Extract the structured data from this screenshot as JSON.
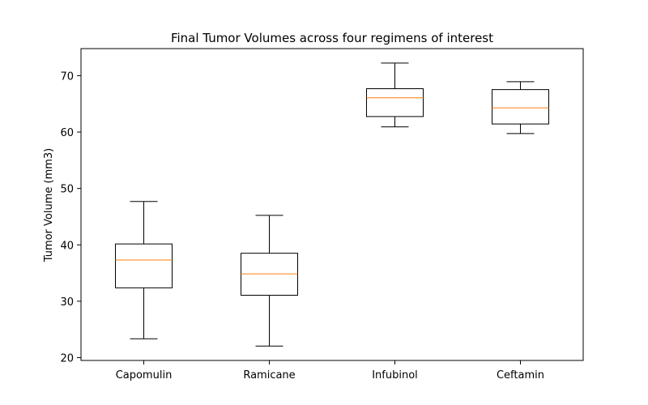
{
  "chart_data": {
    "type": "box",
    "title": "Final Tumor Volumes across four regimens of interest",
    "xlabel": "",
    "ylabel": "Tumor Volume (mm3)",
    "ylim": [
      19.5,
      74.8
    ],
    "yticks": [
      20,
      30,
      40,
      50,
      60,
      70
    ],
    "grid": false,
    "categories": [
      "Capomulin",
      "Ramicane",
      "Infubinol",
      "Ceftamin"
    ],
    "boxes": [
      {
        "whisker_low": 23.34,
        "q1": 32.38,
        "median": 37.31,
        "q3": 40.16,
        "whisker_high": 47.69
      },
      {
        "whisker_low": 22.05,
        "q1": 31.06,
        "median": 34.85,
        "q3": 38.51,
        "whisker_high": 45.22
      },
      {
        "whisker_low": 60.92,
        "q1": 62.75,
        "median": 66.08,
        "q3": 67.69,
        "whisker_high": 72.23
      },
      {
        "whisker_low": 59.74,
        "q1": 61.43,
        "median": 64.3,
        "q3": 67.53,
        "whisker_high": 68.92
      }
    ],
    "colors": {
      "box": "#000000",
      "median": "#ff7f0e",
      "axes": "#000000"
    }
  }
}
